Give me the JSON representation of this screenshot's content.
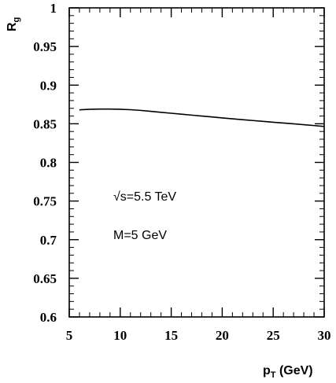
{
  "chart_data": {
    "type": "line",
    "title": "",
    "xlabel": {
      "main": "p",
      "sub": "T",
      "rest": " (GeV)"
    },
    "ylabel": {
      "main": "R",
      "sub": "g"
    },
    "xlim": [
      5,
      30
    ],
    "ylim": [
      0.6,
      1.0
    ],
    "x_ticks": [
      "5",
      "10",
      "15",
      "20",
      "25",
      "30"
    ],
    "y_ticks": [
      "0.6",
      "0.65",
      "0.7",
      "0.75",
      "0.8",
      "0.85",
      "0.9",
      "0.95",
      "1"
    ],
    "grid": false,
    "annotations": [
      "√s=5.5 TeV",
      "M=5 GeV"
    ],
    "series": [
      {
        "x": [
          6,
          7,
          8,
          9,
          10,
          11,
          12,
          13,
          14,
          15,
          16,
          17,
          18,
          19,
          20,
          21,
          22,
          23,
          24,
          25,
          26,
          27,
          28,
          29,
          30
        ],
        "values": [
          0.868,
          0.8688,
          0.869,
          0.869,
          0.8688,
          0.8682,
          0.8673,
          0.8661,
          0.8648,
          0.8636,
          0.8624,
          0.8612,
          0.86,
          0.8588,
          0.8576,
          0.8564,
          0.8553,
          0.8542,
          0.8531,
          0.852,
          0.851,
          0.8499,
          0.8488,
          0.8477,
          0.8465
        ]
      }
    ]
  }
}
